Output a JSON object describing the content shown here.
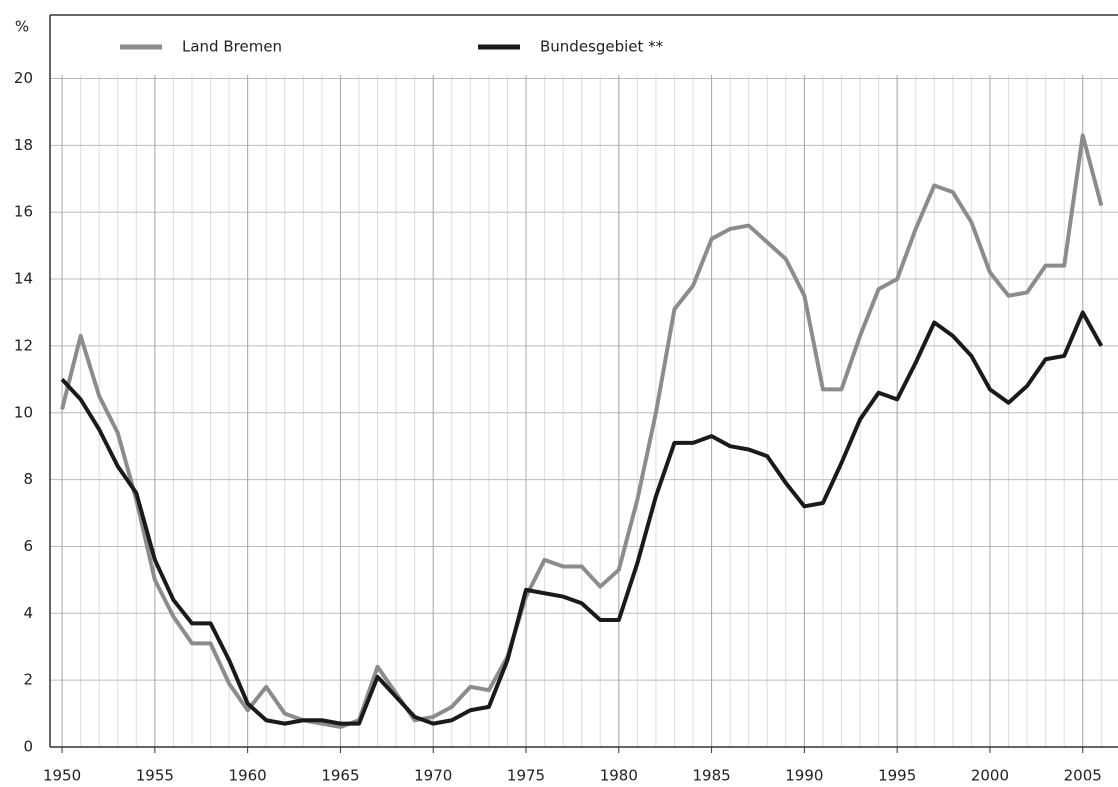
{
  "chart_data": {
    "type": "line",
    "y_label": "%",
    "x": [
      1950,
      1951,
      1952,
      1953,
      1954,
      1955,
      1956,
      1957,
      1958,
      1959,
      1960,
      1961,
      1962,
      1963,
      1964,
      1965,
      1966,
      1967,
      1968,
      1969,
      1970,
      1971,
      1972,
      1973,
      1974,
      1975,
      1976,
      1977,
      1978,
      1979,
      1980,
      1981,
      1982,
      1983,
      1984,
      1985,
      1986,
      1987,
      1988,
      1989,
      1990,
      1991,
      1992,
      1993,
      1994,
      1995,
      1996,
      1997,
      1998,
      1999,
      2000,
      2001,
      2002,
      2003,
      2004,
      2005,
      2006
    ],
    "series": [
      {
        "name": "Land Bremen",
        "color": "#8c8c8c",
        "values": [
          10.1,
          12.3,
          10.5,
          9.4,
          7.4,
          5.0,
          3.9,
          3.1,
          3.1,
          1.9,
          1.1,
          1.8,
          1.0,
          0.8,
          0.7,
          0.6,
          0.8,
          2.4,
          1.6,
          0.8,
          0.9,
          1.2,
          1.8,
          1.7,
          2.7,
          4.5,
          5.6,
          5.4,
          5.4,
          4.8,
          5.3,
          7.4,
          10.0,
          13.1,
          13.8,
          15.2,
          15.5,
          15.6,
          15.1,
          14.6,
          13.5,
          10.7,
          10.7,
          12.3,
          13.7,
          14.0,
          15.5,
          16.8,
          16.6,
          15.7,
          14.2,
          13.5,
          13.6,
          14.4,
          14.4,
          18.3,
          16.2
        ]
      },
      {
        "name": "Bundesgebiet **",
        "color": "#1a1a1a",
        "values": [
          11.0,
          10.4,
          9.5,
          8.4,
          7.6,
          5.6,
          4.4,
          3.7,
          3.7,
          2.6,
          1.3,
          0.8,
          0.7,
          0.8,
          0.8,
          0.7,
          0.7,
          2.1,
          1.5,
          0.9,
          0.7,
          0.8,
          1.1,
          1.2,
          2.6,
          4.7,
          4.6,
          4.5,
          4.3,
          3.8,
          3.8,
          5.5,
          7.5,
          9.1,
          9.1,
          9.3,
          9.0,
          8.9,
          8.7,
          7.9,
          7.2,
          7.3,
          8.5,
          9.8,
          10.6,
          10.4,
          11.5,
          12.7,
          12.3,
          11.7,
          10.7,
          10.3,
          10.8,
          11.6,
          11.7,
          13.0,
          12.0
        ]
      }
    ],
    "xlim": [
      1949.35,
      2006.9
    ],
    "xticks": [
      1950,
      1955,
      1960,
      1965,
      1970,
      1975,
      1980,
      1985,
      1990,
      1995,
      2000,
      2005
    ],
    "ylim": [
      0,
      21.9
    ],
    "yticks": [
      0,
      2,
      4,
      6,
      8,
      10,
      12,
      14,
      16,
      18,
      20
    ],
    "grid": true,
    "legend": "top-left"
  }
}
